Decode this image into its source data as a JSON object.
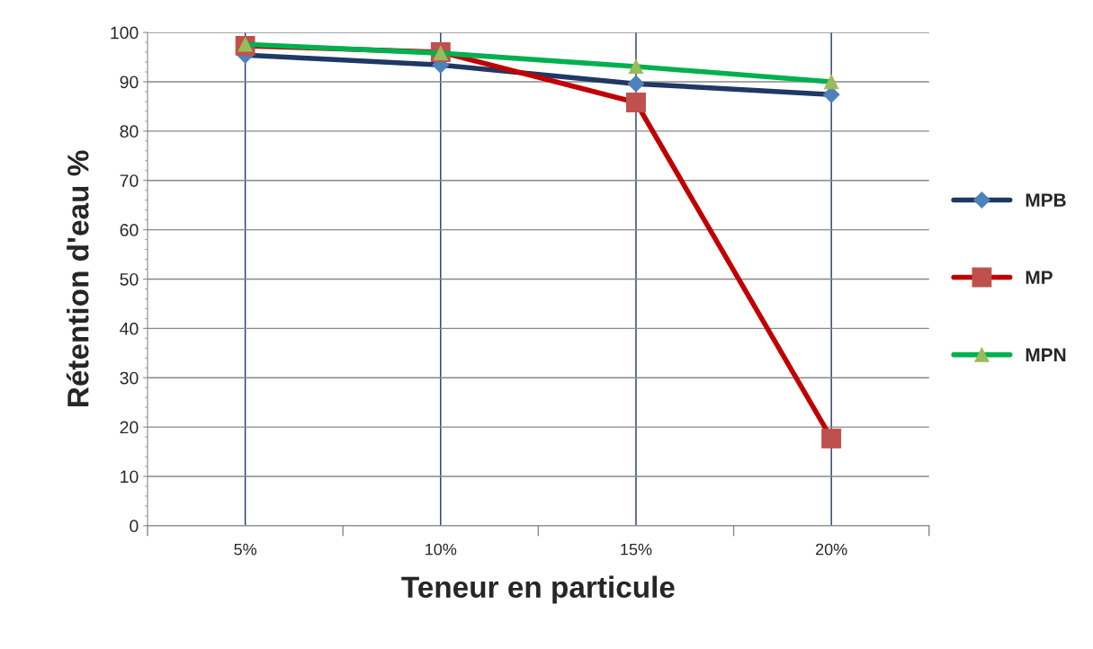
{
  "chart_data": {
    "type": "line",
    "xlabel": "Teneur en particule",
    "ylabel": "Rétention d'eau %",
    "categories": [
      "5%",
      "10%",
      "15%",
      "20%"
    ],
    "series": [
      {
        "name": "MPB",
        "color": "#1f3864",
        "marker": "diamond",
        "values": [
          95.4,
          93.4,
          89.6,
          87.4
        ]
      },
      {
        "name": "MP",
        "color": "#c00000",
        "marker": "square",
        "values": [
          97.3,
          96,
          85.8,
          17.7
        ]
      },
      {
        "name": "MPN",
        "color": "#00b050",
        "marker": "triangle",
        "values": [
          97.6,
          95.8,
          93.1,
          90
        ]
      }
    ],
    "ylim": [
      0,
      100
    ],
    "yticks": [
      0,
      10,
      20,
      30,
      40,
      50,
      60,
      70,
      80,
      90,
      100
    ],
    "grid": true,
    "legend": "right",
    "line_style": "solid"
  }
}
